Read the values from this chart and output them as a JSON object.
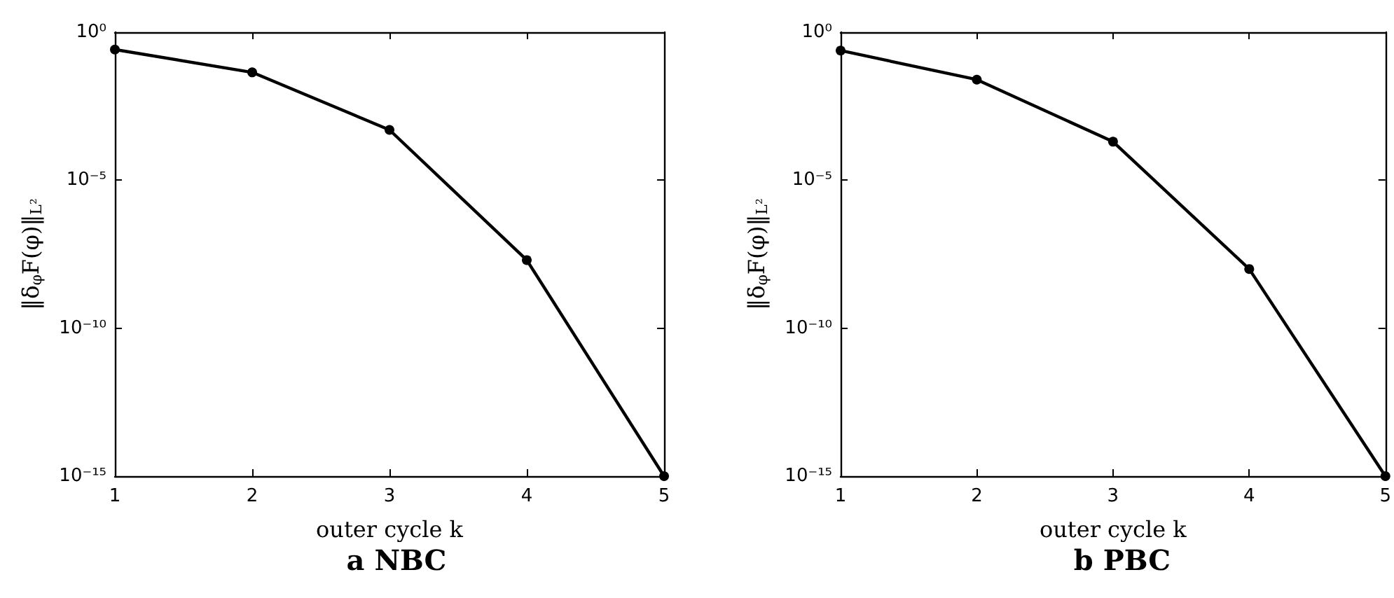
{
  "chart_data": [
    {
      "type": "line",
      "title": "a NBC",
      "xlabel": "outer cycle k",
      "ylabel": "‖δ$_{φ}$F(φ)‖$_{L²}$",
      "log": "y",
      "marker": "circle",
      "line_style": "solid",
      "x": [
        1,
        2,
        3,
        4,
        5
      ],
      "xlim": [
        1,
        5
      ],
      "xticks": [
        1,
        2,
        3,
        4,
        5
      ],
      "ylim": [
        1e-15,
        1
      ],
      "yticks": [
        {
          "value": 1,
          "label": "10⁰"
        },
        {
          "value": 1e-05,
          "label": "10⁻⁵"
        },
        {
          "value": 1e-10,
          "label": "10⁻¹⁰"
        },
        {
          "value": 1e-15,
          "label": "10⁻¹⁵"
        }
      ],
      "series": [
        {
          "color": "#000000",
          "values": [
            0.26,
            0.044,
            0.0005,
            2e-08,
            1e-15
          ]
        }
      ]
    },
    {
      "type": "line",
      "title": "b PBC",
      "xlabel": "outer cycle k",
      "ylabel": "‖δ$_{φ}$F(φ)‖$_{L²}$",
      "log": "y",
      "marker": "circle",
      "line_style": "solid",
      "x": [
        1,
        2,
        3,
        4,
        5
      ],
      "xlim": [
        1,
        5
      ],
      "xticks": [
        1,
        2,
        3,
        4,
        5
      ],
      "ylim": [
        1e-15,
        1
      ],
      "yticks": [
        {
          "value": 1,
          "label": "10⁰"
        },
        {
          "value": 1e-05,
          "label": "10⁻⁵"
        },
        {
          "value": 1e-10,
          "label": "10⁻¹⁰"
        },
        {
          "value": 1e-15,
          "label": "10⁻¹⁵"
        }
      ],
      "series": [
        {
          "color": "#000000",
          "values": [
            0.24,
            0.025,
            0.0002,
            1e-08,
            1e-15
          ]
        }
      ]
    }
  ]
}
